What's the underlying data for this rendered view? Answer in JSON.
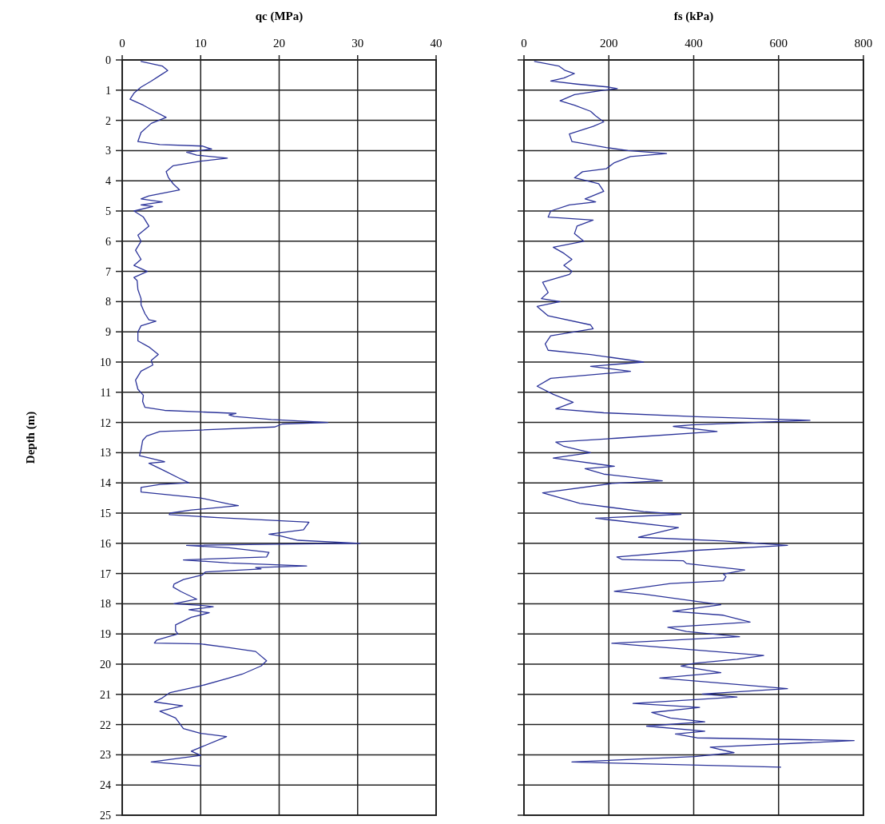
{
  "chart_data": [
    {
      "type": "line",
      "xlabel": "qc (MPa)",
      "ylabel": "Depth (m)",
      "xlim": [
        0,
        40
      ],
      "xticks": [
        0,
        10,
        20,
        30,
        40
      ],
      "ylim": [
        25,
        0
      ],
      "yticks": [
        0,
        1,
        2,
        3,
        4,
        5,
        6,
        7,
        8,
        9,
        10,
        11,
        12,
        13,
        14,
        15,
        16,
        17,
        18,
        19,
        20,
        21,
        22,
        23,
        24,
        25
      ],
      "grid": true,
      "line_style": "solid",
      "series": [
        {
          "color": "#2b3399",
          "x": [
            2.4,
            5.1,
            5.8,
            4.9,
            3.7,
            2.4,
            1.5,
            1.0,
            2.7,
            4.1,
            5.6,
            3.7,
            2.4,
            2.0,
            4.8,
            10.2,
            11.4,
            8.2,
            9.5,
            13.4,
            10,
            6.5,
            5.6,
            5.9,
            6.5,
            7.3,
            3.4,
            2.4,
            5.1,
            2.4,
            3.9,
            1.5,
            2.7,
            3.4,
            2.0,
            2.4,
            1.7,
            2.4,
            1.5,
            3.2,
            1.5,
            1.9,
            2.0,
            2.4,
            2.4,
            2.9,
            3.4,
            4.3,
            2.4,
            2.0,
            2.0,
            3.4,
            4.6,
            3.7,
            3.9,
            2.4,
            1.7,
            2.0,
            2.7,
            2.6,
            2.9,
            5.4,
            10,
            14.5,
            13.6,
            14.3,
            19.0,
            26.2,
            20.4,
            19.4,
            10,
            4.8,
            3.1,
            2.6,
            2.4,
            2.2,
            5.4,
            3.4,
            5.4,
            7.3,
            8.5,
            4.8,
            2.4,
            2.4,
            10,
            13.6,
            14.8,
            8.8,
            6.1,
            6.0,
            12.2,
            23.8,
            23.1,
            18.7,
            20.1,
            22.4,
            30.3,
            22.1,
            8.2,
            13.6,
            18.7,
            18.4,
            7.8,
            13.6,
            23.5,
            17,
            17.7,
            10.6,
            10.2,
            7.8,
            6.6,
            6.5,
            7.5,
            9.5,
            6.6,
            10,
            11.6,
            8.5,
            11.1,
            8.8,
            6.8,
            6.8,
            7.1,
            4.4,
            4.1,
            10,
            13.3,
            17.0,
            18.4,
            17.7,
            15.3,
            13.6,
            10,
            6.1,
            5.1,
            4.1,
            7.7,
            4.8,
            6.8,
            7.8,
            10,
            13.3,
            8.8,
            10,
            3.7,
            10
          ],
          "values": [
            0.05,
            0.2,
            0.35,
            0.5,
            0.7,
            0.9,
            1.1,
            1.3,
            1.5,
            1.7,
            1.9,
            2.1,
            2.4,
            2.7,
            2.8,
            2.85,
            2.95,
            3.05,
            3.15,
            3.25,
            3.35,
            3.5,
            3.7,
            3.9,
            4.1,
            4.3,
            4.5,
            4.6,
            4.7,
            4.8,
            4.85,
            5.0,
            5.2,
            5.5,
            5.8,
            6.0,
            6.3,
            6.6,
            6.8,
            7.0,
            7.2,
            7.3,
            7.6,
            7.9,
            8.1,
            8.4,
            8.6,
            8.65,
            8.8,
            9.0,
            9.3,
            9.5,
            9.75,
            9.95,
            10.1,
            10.3,
            10.6,
            10.9,
            11.1,
            11.3,
            11.5,
            11.6,
            11.65,
            11.7,
            11.75,
            11.8,
            11.9,
            12.0,
            12.05,
            12.15,
            12.25,
            12.3,
            12.45,
            12.6,
            12.9,
            13.1,
            13.3,
            13.35,
            13.6,
            13.85,
            14.0,
            14.05,
            14.15,
            14.3,
            14.5,
            14.7,
            14.75,
            14.9,
            15.0,
            15.05,
            15.15,
            15.3,
            15.55,
            15.7,
            15.75,
            15.9,
            16.0,
            16.02,
            16.07,
            16.15,
            16.3,
            16.45,
            16.55,
            16.65,
            16.75,
            16.8,
            16.85,
            16.95,
            17.05,
            17.2,
            17.35,
            17.45,
            17.6,
            17.85,
            18.0,
            18.05,
            18.1,
            18.2,
            18.3,
            18.45,
            18.7,
            18.9,
            19.0,
            19.2,
            19.3,
            19.33,
            19.44,
            19.58,
            19.89,
            20.06,
            20.33,
            20.46,
            20.72,
            20.94,
            21.12,
            21.25,
            21.38,
            21.56,
            21.78,
            22.13,
            22.29,
            22.4,
            22.88,
            23.02,
            23.24,
            23.37
          ]
        }
      ]
    },
    {
      "type": "line",
      "xlabel": "fs (kPa)",
      "xlim": [
        0,
        800
      ],
      "xticks": [
        0,
        200,
        400,
        600,
        800
      ],
      "ylim": [
        25,
        0
      ],
      "yticks": [
        0,
        1,
        2,
        3,
        4,
        5,
        6,
        7,
        8,
        9,
        10,
        11,
        12,
        13,
        14,
        15,
        16,
        17,
        18,
        19,
        20,
        21,
        22,
        23,
        24,
        25
      ],
      "grid": true,
      "tick_labels": "x",
      "line_style": "solid",
      "series": [
        {
          "color": "#2b3399",
          "x": [
            25,
            82,
            97,
            119,
            94,
            63,
            125,
            201,
            220,
            188,
            119,
            85,
            119,
            157,
            169,
            188,
            163,
            107,
            113,
            194,
            245,
            336,
            251,
            213,
            194,
            138,
            119,
            176,
            188,
            144,
            169,
            107,
            63,
            57,
            163,
            125,
            119,
            141,
            69,
            94,
            113,
            94,
            113,
            107,
            44,
            57,
            41,
            85,
            31,
            57,
            157,
            163,
            63,
            50,
            57,
            157,
            282,
            157,
            251,
            63,
            31,
            69,
            116,
            75,
            188,
            408,
            674,
            395,
            352,
            455,
            219,
            75,
            94,
            157,
            69,
            213,
            144,
            188,
            326,
            207,
            44,
            132,
            282,
            370,
            169,
            364,
            270,
            470,
            621,
            408,
            219,
            232,
            376,
            383,
            520,
            470,
            476,
            470,
            345,
            213,
            282,
            464,
            351,
            470,
            533,
            339,
            383,
            508,
            207,
            565,
            502,
            402,
            370,
            464,
            320,
            621,
            420,
            502,
            257,
            414,
            301,
            345,
            426,
            289,
            426,
            357,
            408,
            778,
            439,
            495,
            402,
            113,
            605
          ],
          "values": [
            0.05,
            0.2,
            0.35,
            0.45,
            0.6,
            0.7,
            0.8,
            0.9,
            0.95,
            1.0,
            1.15,
            1.35,
            1.5,
            1.7,
            1.85,
            2.05,
            2.2,
            2.45,
            2.7,
            2.9,
            3.0,
            3.1,
            3.2,
            3.4,
            3.6,
            3.7,
            3.9,
            4.1,
            4.35,
            4.6,
            4.7,
            4.8,
            5.0,
            5.2,
            5.3,
            5.5,
            5.75,
            6.0,
            6.2,
            6.4,
            6.6,
            6.8,
            7.0,
            7.1,
            7.36,
            7.7,
            7.9,
            8.0,
            8.16,
            8.47,
            8.77,
            8.9,
            9.13,
            9.4,
            9.61,
            9.75,
            10.0,
            10.14,
            10.31,
            10.54,
            10.8,
            11.07,
            11.33,
            11.55,
            11.68,
            11.81,
            11.93,
            12.08,
            12.13,
            12.3,
            12.52,
            12.65,
            12.79,
            13.0,
            13.18,
            13.45,
            13.53,
            13.71,
            13.93,
            14.02,
            14.33,
            14.68,
            14.95,
            15.04,
            15.17,
            15.48,
            15.8,
            15.92,
            16.07,
            16.23,
            16.45,
            16.54,
            16.58,
            16.67,
            16.88,
            17.02,
            17.1,
            17.24,
            17.33,
            17.59,
            17.68,
            18.03,
            18.25,
            18.38,
            18.61,
            18.78,
            18.92,
            19.09,
            19.31,
            19.71,
            19.84,
            19.97,
            20.06,
            20.28,
            20.46,
            20.81,
            20.99,
            21.09,
            21.3,
            21.43,
            21.6,
            21.78,
            21.91,
            22.05,
            22.22,
            22.31,
            22.44,
            22.53,
            22.75,
            22.93,
            23.06,
            23.24,
            23.41
          ]
        }
      ]
    }
  ]
}
